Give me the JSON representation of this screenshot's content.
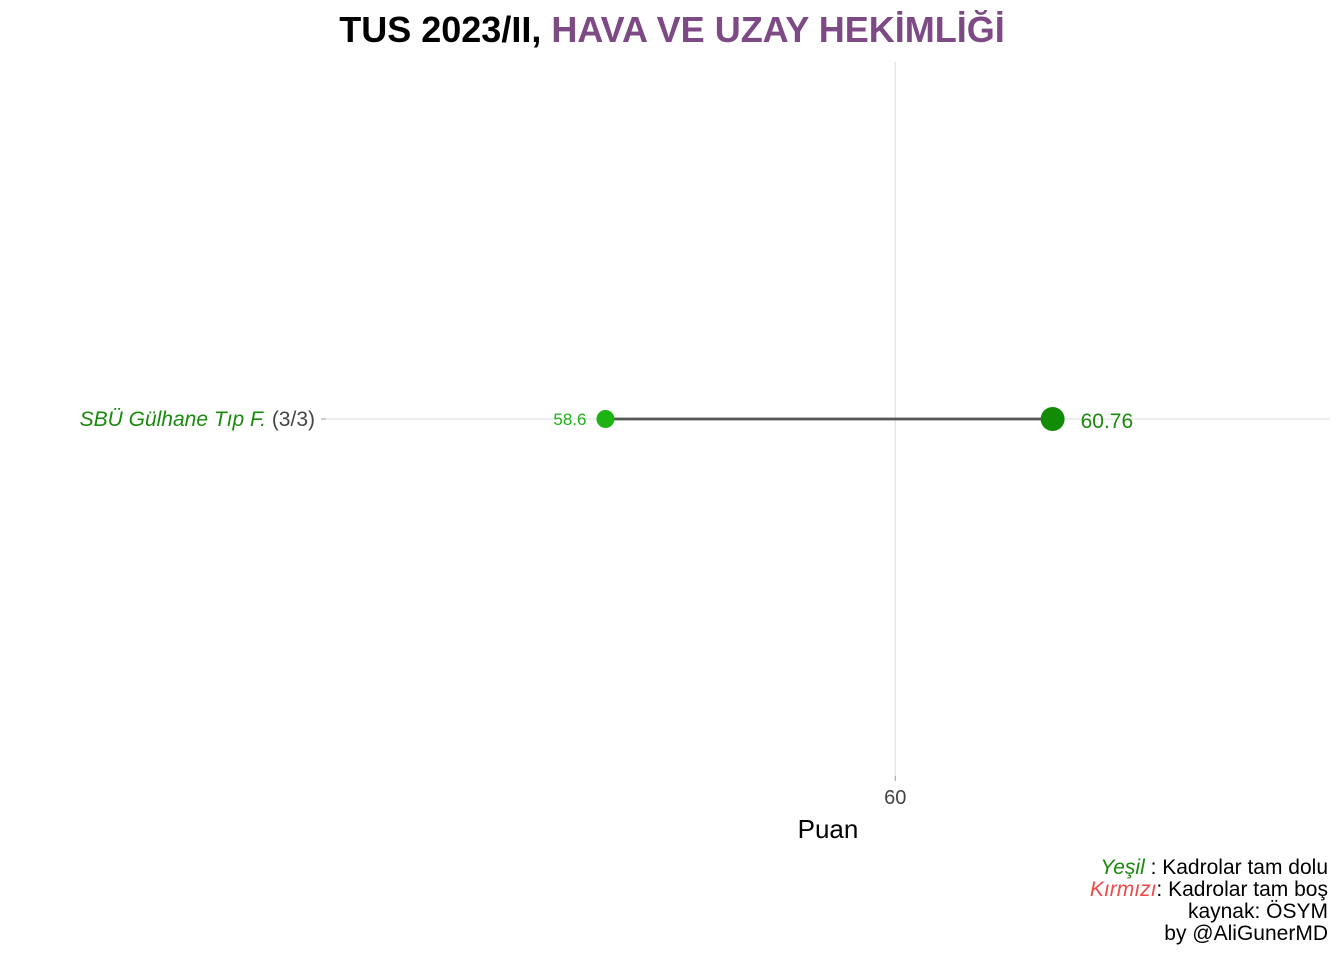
{
  "title": {
    "prefix": "TUS 2023/II, ",
    "highlight": "HAVA VE UZAY HEKİMLİĞİ"
  },
  "chart_data": {
    "type": "dumbbell",
    "xlabel": "Puan",
    "ylabel": "",
    "xlim": [
      57.25,
      62.1
    ],
    "x_ticks": [
      60
    ],
    "grid": true,
    "categories": [
      {
        "name": "SBÜ Gülhane Tıp F.",
        "quota": "(3/3)",
        "min": 58.6,
        "max": 60.76,
        "min_label": "58.6",
        "max_label": "60.76",
        "status": "full"
      }
    ]
  },
  "colors": {
    "title_highlight": "#7e4a85",
    "full": "#1a8a0c",
    "min_point": "#1db313",
    "max_point": "#128c07",
    "empty": "#ef4a4a",
    "segment": "#555555",
    "grid": "#e3e3e3",
    "tick_text": "#444444"
  },
  "caption": {
    "green_word": "Yeşil",
    "green_text": " : Kadrolar tam dolu",
    "red_word": "Kırmızı",
    "red_text": ": Kadrolar tam boş",
    "source": "kaynak: ÖSYM",
    "author": "by @AliGunerMD"
  }
}
